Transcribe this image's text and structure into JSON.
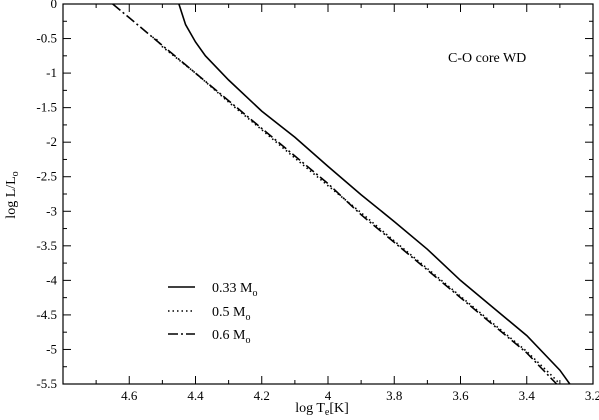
{
  "chart_data": {
    "type": "line",
    "title": "",
    "xlabel": {
      "main": "log T",
      "sub": "e",
      "tail": "[K]"
    },
    "ylabel": {
      "main": "log L/L",
      "sub": "o"
    },
    "xlim": [
      4.8,
      3.2
    ],
    "ylim": [
      -5.5,
      0
    ],
    "x_reversed": true,
    "grid": false,
    "x_ticks": [
      4.8,
      4.6,
      4.4,
      4.2,
      4.0,
      3.8,
      3.6,
      3.4,
      3.2
    ],
    "x_tick_labels": [
      "",
      "4.6",
      "4.4",
      "4.2",
      "4",
      "3.8",
      "3.6",
      "3.4",
      "3.2"
    ],
    "y_ticks": [
      0,
      -0.5,
      -1,
      -1.5,
      -2,
      -2.5,
      -3,
      -3.5,
      -4,
      -4.5,
      -5,
      -5.5
    ],
    "y_tick_labels": [
      "0",
      "-0.5",
      "-1",
      "-1.5",
      "-2",
      "-2.5",
      "-3",
      "-3.5",
      "-4",
      "-4.5",
      "-5",
      "-5.5"
    ],
    "annotation": "C-O core WD",
    "legend_position": "bottom-left",
    "series": [
      {
        "label": "0.33 M",
        "label_sub": "o",
        "style": "solid",
        "points": [
          [
            4.45,
            0.0
          ],
          [
            4.43,
            -0.3
          ],
          [
            4.4,
            -0.55
          ],
          [
            4.37,
            -0.75
          ],
          [
            4.3,
            -1.1
          ],
          [
            4.2,
            -1.55
          ],
          [
            4.1,
            -1.93
          ],
          [
            4.0,
            -2.35
          ],
          [
            3.9,
            -2.76
          ],
          [
            3.8,
            -3.15
          ],
          [
            3.7,
            -3.55
          ],
          [
            3.6,
            -4.0
          ],
          [
            3.5,
            -4.4
          ],
          [
            3.4,
            -4.8
          ],
          [
            3.3,
            -5.3
          ],
          [
            3.27,
            -5.5
          ]
        ]
      },
      {
        "label": "0.5  M",
        "label_sub": "o",
        "style": "dotted",
        "points": [
          [
            4.53,
            -0.48
          ],
          [
            4.52,
            -0.5
          ],
          [
            4.5,
            -0.62
          ],
          [
            4.4,
            -1.0
          ],
          [
            4.3,
            -1.42
          ],
          [
            4.2,
            -1.82
          ],
          [
            4.1,
            -2.23
          ],
          [
            4.0,
            -2.63
          ],
          [
            3.9,
            -3.02
          ],
          [
            3.8,
            -3.43
          ],
          [
            3.7,
            -3.83
          ],
          [
            3.6,
            -4.23
          ],
          [
            3.5,
            -4.63
          ],
          [
            3.4,
            -5.03
          ],
          [
            3.32,
            -5.4
          ],
          [
            3.3,
            -5.5
          ]
        ]
      },
      {
        "label": "0.6  M",
        "label_sub": "o",
        "style": "dashdot",
        "points": [
          [
            4.65,
            0.0
          ],
          [
            4.6,
            -0.2
          ],
          [
            4.5,
            -0.6
          ],
          [
            4.4,
            -1.0
          ],
          [
            4.3,
            -1.4
          ],
          [
            4.2,
            -1.8
          ],
          [
            4.1,
            -2.2
          ],
          [
            4.0,
            -2.6
          ],
          [
            3.9,
            -3.05
          ],
          [
            3.8,
            -3.45
          ],
          [
            3.7,
            -3.85
          ],
          [
            3.6,
            -4.25
          ],
          [
            3.5,
            -4.65
          ],
          [
            3.4,
            -5.05
          ],
          [
            3.34,
            -5.35
          ],
          [
            3.31,
            -5.5
          ]
        ]
      }
    ]
  }
}
